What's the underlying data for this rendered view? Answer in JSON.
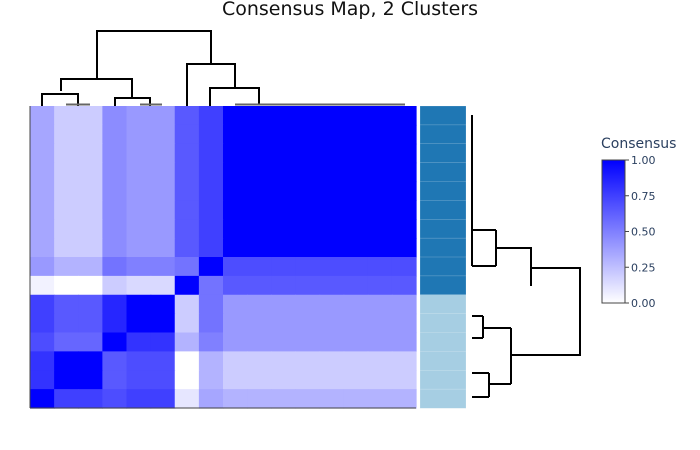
{
  "chart_data": {
    "type": "heatmap",
    "title": "Consensus Map, 2 Clusters",
    "colorbar": {
      "title": "Consensus",
      "range": [
        0,
        1
      ],
      "tick_labels": [
        "1.00",
        "0.75",
        "0.50",
        "0.25",
        "0.00"
      ],
      "tick_values": [
        1.0,
        0.75,
        0.5,
        0.25,
        0.0
      ],
      "color_low": "#ffffff",
      "color_high": "#0000ff"
    },
    "sample_count": 16,
    "column_widths": [
      1,
      1,
      1,
      1,
      1,
      1,
      1,
      1,
      1,
      1,
      1,
      1,
      1,
      1,
      1,
      1
    ],
    "matrix": [
      [
        0.35,
        0.2,
        0.2,
        0.45,
        0.4,
        0.4,
        0.65,
        0.75,
        1,
        1,
        1,
        1,
        1,
        1,
        1,
        1
      ],
      [
        0.35,
        0.2,
        0.2,
        0.45,
        0.4,
        0.4,
        0.65,
        0.75,
        1,
        1,
        1,
        1,
        1,
        1,
        1,
        1
      ],
      [
        0.35,
        0.2,
        0.2,
        0.45,
        0.4,
        0.4,
        0.65,
        0.75,
        1,
        1,
        1,
        1,
        1,
        1,
        1,
        1
      ],
      [
        0.35,
        0.2,
        0.2,
        0.45,
        0.4,
        0.4,
        0.65,
        0.75,
        1,
        1,
        1,
        1,
        1,
        1,
        1,
        1
      ],
      [
        0.35,
        0.2,
        0.2,
        0.45,
        0.4,
        0.4,
        0.65,
        0.75,
        1,
        1,
        1,
        1,
        1,
        1,
        1,
        1
      ],
      [
        0.35,
        0.2,
        0.2,
        0.45,
        0.4,
        0.4,
        0.65,
        0.75,
        1,
        1,
        1,
        1,
        1,
        1,
        1,
        1
      ],
      [
        0.35,
        0.2,
        0.2,
        0.45,
        0.4,
        0.4,
        0.65,
        0.75,
        1,
        1,
        1,
        1,
        1,
        1,
        1,
        1
      ],
      [
        0.35,
        0.2,
        0.2,
        0.45,
        0.4,
        0.4,
        0.65,
        0.75,
        1,
        1,
        1,
        1,
        1,
        1,
        1,
        1
      ],
      [
        0.4,
        0.3,
        0.3,
        0.55,
        0.5,
        0.5,
        0.55,
        1.0,
        0.7,
        0.7,
        0.7,
        0.7,
        0.7,
        0.7,
        0.7,
        0.7
      ],
      [
        0.05,
        0.0,
        0.0,
        0.2,
        0.15,
        0.15,
        1.0,
        0.55,
        0.65,
        0.65,
        0.65,
        0.65,
        0.65,
        0.65,
        0.65,
        0.65
      ],
      [
        0.75,
        0.65,
        0.65,
        0.85,
        1.0,
        1.0,
        0.2,
        0.55,
        0.4,
        0.4,
        0.4,
        0.4,
        0.4,
        0.4,
        0.4,
        0.4
      ],
      [
        0.75,
        0.65,
        0.65,
        0.85,
        1.0,
        1.0,
        0.2,
        0.55,
        0.4,
        0.4,
        0.4,
        0.4,
        0.4,
        0.4,
        0.4,
        0.4
      ],
      [
        0.7,
        0.6,
        0.6,
        1.0,
        0.8,
        0.8,
        0.3,
        0.5,
        0.4,
        0.4,
        0.4,
        0.4,
        0.4,
        0.4,
        0.4,
        0.4
      ],
      [
        0.8,
        1.0,
        1.0,
        0.65,
        0.7,
        0.7,
        0.0,
        0.3,
        0.2,
        0.2,
        0.2,
        0.2,
        0.2,
        0.2,
        0.2,
        0.2
      ],
      [
        0.8,
        1.0,
        1.0,
        0.65,
        0.7,
        0.7,
        0.0,
        0.3,
        0.2,
        0.2,
        0.2,
        0.2,
        0.2,
        0.2,
        0.2,
        0.2
      ],
      [
        1.0,
        0.75,
        0.75,
        0.7,
        0.75,
        0.75,
        0.1,
        0.35,
        0.3,
        0.3,
        0.3,
        0.3,
        0.3,
        0.3,
        0.3,
        0.3
      ]
    ],
    "cluster_bar": {
      "colors": [
        "#1f77b4",
        "#1f77b4",
        "#1f77b4",
        "#1f77b4",
        "#1f77b4",
        "#1f77b4",
        "#1f77b4",
        "#1f77b4",
        "#1f77b4",
        "#1f77b4",
        "#a6cee3",
        "#a6cee3",
        "#a6cee3",
        "#a6cee3",
        "#a6cee3",
        "#a6cee3"
      ]
    }
  }
}
